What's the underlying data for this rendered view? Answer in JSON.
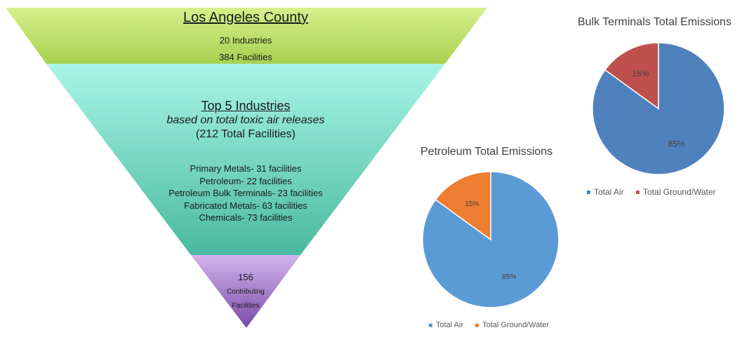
{
  "funnel": {
    "top": {
      "title": "Los Angeles County",
      "line1": "20 Industries",
      "line2": "384 Facilities",
      "color_start": "#d6f08c",
      "color_end": "#a8d050"
    },
    "middle": {
      "title": "Top 5 Industries",
      "subtitle": "based on total toxic air releases",
      "total": "(212 Total Facilities)",
      "items": [
        "Primary Metals- 31 facilities",
        "Petroleum- 22 facilities",
        "Petroleum Bulk Terminals- 23 facilities",
        "Fabricated Metals- 63 facilities",
        "Chemicals- 73 facilities"
      ],
      "color_start": "#a8f5e8",
      "color_end": "#4ab9a0"
    },
    "bottom": {
      "line1": "156",
      "line2": "Contributing",
      "line3": "Facilities",
      "color_start": "#d3b5ee",
      "color_end": "#7a4aa8"
    }
  },
  "chart_data": [
    {
      "type": "pie",
      "title": "Bulk Terminals Total Emissions",
      "labels": [
        "Total Air",
        "Total Ground/Water"
      ],
      "values": [
        85,
        15
      ],
      "data_labels": [
        "85%",
        "15%"
      ],
      "colors": [
        "#4f81bd",
        "#c0504d"
      ],
      "legend_position": "bottom"
    },
    {
      "type": "pie",
      "title": "Petroleum Total Emissions",
      "labels": [
        "Total Air",
        "Total Ground/Water"
      ],
      "values": [
        85,
        15
      ],
      "data_labels": [
        "85%",
        "15%"
      ],
      "colors": [
        "#5b9bd5",
        "#ed7d31"
      ],
      "legend_position": "bottom"
    }
  ]
}
